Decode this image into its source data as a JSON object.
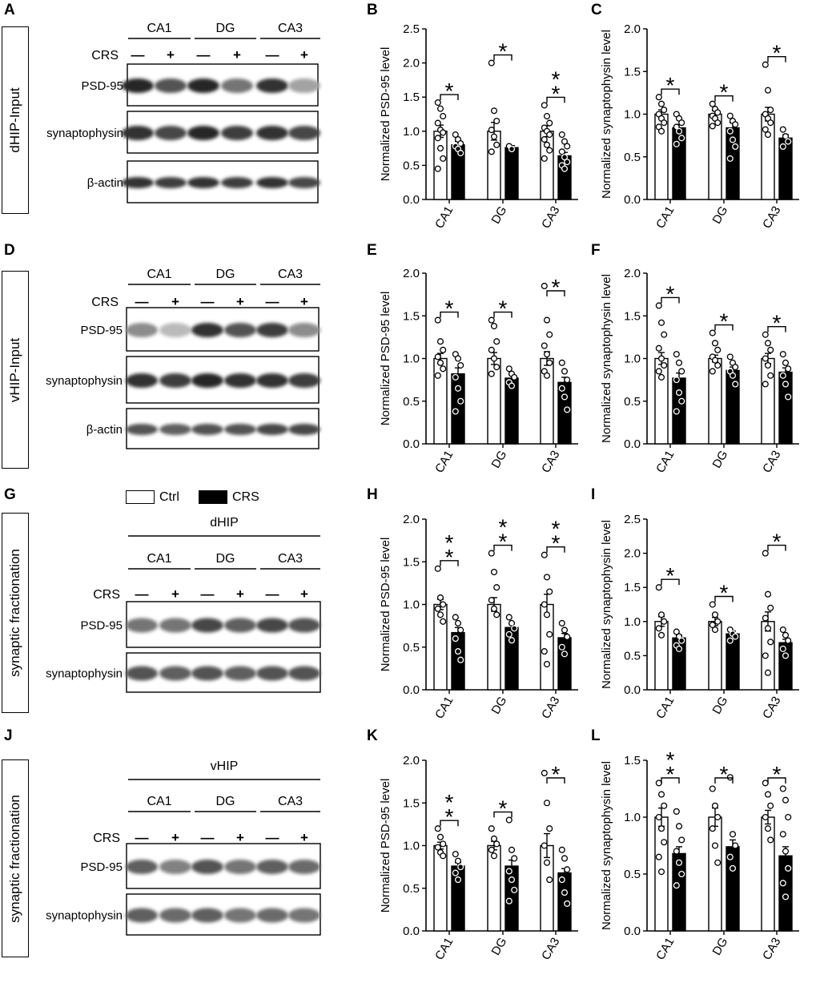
{
  "panels": {
    "A": "A",
    "B": "B",
    "C": "C",
    "D": "D",
    "E": "E",
    "F": "F",
    "G": "G",
    "H": "H",
    "I": "I",
    "J": "J",
    "K": "K",
    "L": "L"
  },
  "side_labels": {
    "row1": "dHIP-Input",
    "row2": "vHIP-Input",
    "row3": "synaptic fractionation",
    "row4": "synaptic fractionation"
  },
  "legend": {
    "ctrl": "Ctrl",
    "crs": "CRS"
  },
  "blots": [
    {
      "panel": "A",
      "region_header": "",
      "groups": [
        "CA1",
        "DG",
        "CA3"
      ],
      "treatment_label": "CRS",
      "signs": [
        "—",
        "+",
        "—",
        "+",
        "—",
        "+"
      ],
      "bands": [
        "PSD-95",
        "synaptophysin",
        "β-actin"
      ]
    },
    {
      "panel": "D",
      "region_header": "",
      "groups": [
        "CA1",
        "DG",
        "CA3"
      ],
      "treatment_label": "CRS",
      "signs": [
        "—",
        "+",
        "—",
        "+",
        "—",
        "+"
      ],
      "bands": [
        "PSD-95",
        "synaptophysin",
        "β-actin"
      ]
    },
    {
      "panel": "G",
      "region_header": "dHIP",
      "groups": [
        "CA1",
        "DG",
        "CA3"
      ],
      "treatment_label": "CRS",
      "signs": [
        "—",
        "+",
        "—",
        "+",
        "—",
        "+"
      ],
      "bands": [
        "PSD-95",
        "synaptophysin"
      ]
    },
    {
      "panel": "J",
      "region_header": "vHIP",
      "groups": [
        "CA1",
        "DG",
        "CA3"
      ],
      "treatment_label": "CRS",
      "signs": [
        "—",
        "+",
        "—",
        "+",
        "—",
        "+"
      ],
      "bands": [
        "PSD-95",
        "synaptophysin"
      ]
    }
  ],
  "chart_data": [
    {
      "panel": "B",
      "type": "bar",
      "ylabel": "Normalized PSD-95 level",
      "ylim": [
        0,
        2.5
      ],
      "yticks": [
        "0.0",
        "0.5",
        "1.0",
        "1.5",
        "2.0",
        "2.5"
      ],
      "categories": [
        "CA1",
        "DG",
        "CA3"
      ],
      "series": [
        {
          "name": "Ctrl",
          "values": [
            1.0,
            1.0,
            1.0
          ],
          "sem": [
            0.09,
            0.13,
            0.08
          ],
          "points": [
            [
              1.42,
              1.33,
              1.22,
              1.12,
              1.02,
              0.98,
              0.9,
              0.75,
              0.6,
              0.45
            ],
            [
              2.0,
              1.3,
              1.15,
              1.02,
              0.92,
              0.8,
              0.7
            ],
            [
              1.38,
              1.22,
              1.12,
              1.05,
              1.0,
              0.95,
              0.88,
              0.8,
              0.72,
              0.6
            ]
          ]
        },
        {
          "name": "CRS",
          "values": [
            0.8,
            0.76,
            0.64
          ],
          "sem": [
            0.05,
            0.03,
            0.05
          ],
          "points": [
            [
              0.95,
              0.88,
              0.82,
              0.78,
              0.74,
              0.68
            ],
            [
              0.78,
              0.74
            ],
            [
              0.95,
              0.85,
              0.78,
              0.7,
              0.62,
              0.55,
              0.5,
              0.45
            ]
          ]
        }
      ],
      "significance": [
        "*",
        "*",
        "**"
      ]
    },
    {
      "panel": "C",
      "type": "bar",
      "ylabel": "Normalized synaptophysin level",
      "ylim": [
        0,
        2.0
      ],
      "yticks": [
        "0.0",
        "0.5",
        "1.0",
        "1.5",
        "2.0"
      ],
      "categories": [
        "CA1",
        "DG",
        "CA3"
      ],
      "series": [
        {
          "name": "Ctrl",
          "values": [
            1.0,
            1.0,
            1.0
          ],
          "sem": [
            0.05,
            0.04,
            0.08
          ],
          "points": [
            [
              1.2,
              1.12,
              1.05,
              1.0,
              0.95,
              0.9,
              0.85,
              0.8
            ],
            [
              1.12,
              1.06,
              1.02,
              0.98,
              0.95,
              0.9,
              0.86
            ],
            [
              1.58,
              1.28,
              1.05,
              1.0,
              0.95,
              0.9,
              0.82,
              0.76
            ]
          ]
        },
        {
          "name": "CRS",
          "values": [
            0.84,
            0.84,
            0.72
          ],
          "sem": [
            0.04,
            0.06,
            0.04
          ],
          "points": [
            [
              1.0,
              0.95,
              0.9,
              0.85,
              0.8,
              0.72,
              0.65
            ],
            [
              0.98,
              0.92,
              0.88,
              0.8,
              0.7,
              0.62,
              0.48
            ],
            [
              0.82,
              0.74,
              0.68,
              0.62
            ]
          ]
        }
      ],
      "significance": [
        "*",
        "*",
        "*"
      ]
    },
    {
      "panel": "E",
      "type": "bar",
      "ylabel": "Normalized PSD-95 level",
      "ylim": [
        0,
        2.0
      ],
      "yticks": [
        "0.0",
        "0.5",
        "1.0",
        "1.5",
        "2.0"
      ],
      "categories": [
        "CA1",
        "DG",
        "CA3"
      ],
      "series": [
        {
          "name": "Ctrl",
          "values": [
            1.0,
            1.0,
            1.0
          ],
          "sem": [
            0.06,
            0.07,
            0.08
          ],
          "points": [
            [
              1.45,
              1.2,
              1.1,
              1.02,
              0.95,
              0.88,
              0.8
            ],
            [
              1.45,
              1.38,
              1.2,
              1.1,
              1.0,
              0.9,
              0.82
            ],
            [
              1.85,
              1.45,
              1.28,
              1.15,
              1.05,
              0.95,
              0.85,
              0.8
            ]
          ]
        },
        {
          "name": "CRS",
          "values": [
            0.82,
            0.77,
            0.72
          ],
          "sem": [
            0.07,
            0.04,
            0.06
          ],
          "points": [
            [
              1.05,
              1.0,
              0.92,
              0.78,
              0.65,
              0.5,
              0.38
            ],
            [
              0.88,
              0.82,
              0.78,
              0.72,
              0.68
            ],
            [
              0.95,
              0.85,
              0.75,
              0.65,
              0.55,
              0.4
            ]
          ]
        }
      ],
      "significance": [
        "*",
        "*",
        "*"
      ]
    },
    {
      "panel": "F",
      "type": "bar",
      "ylabel": "Normalized synaptophysin level",
      "ylim": [
        0,
        2.0
      ],
      "yticks": [
        "0.0",
        "0.5",
        "1.0",
        "1.5",
        "2.0"
      ],
      "categories": [
        "CA1",
        "DG",
        "CA3"
      ],
      "series": [
        {
          "name": "Ctrl",
          "values": [
            1.0,
            1.0,
            1.0
          ],
          "sem": [
            0.07,
            0.04,
            0.06
          ],
          "points": [
            [
              1.62,
              1.42,
              1.28,
              1.12,
              1.0,
              0.92,
              0.85,
              0.78
            ],
            [
              1.3,
              1.18,
              1.1,
              1.02,
              0.98,
              0.92,
              0.85
            ],
            [
              1.28,
              1.18,
              1.1,
              1.0,
              0.92,
              0.8,
              0.7
            ]
          ]
        },
        {
          "name": "CRS",
          "values": [
            0.77,
            0.86,
            0.84
          ],
          "sem": [
            0.06,
            0.04,
            0.05
          ],
          "points": [
            [
              1.05,
              0.95,
              0.85,
              0.75,
              0.6,
              0.5,
              0.38
            ],
            [
              1.02,
              0.95,
              0.9,
              0.85,
              0.8,
              0.7
            ],
            [
              1.05,
              0.95,
              0.88,
              0.8,
              0.7,
              0.55
            ]
          ]
        }
      ],
      "significance": [
        "*",
        "*",
        "*"
      ]
    },
    {
      "panel": "H",
      "type": "bar",
      "ylabel": "Normalized PSD-95 level",
      "ylim": [
        0,
        2.0
      ],
      "yticks": [
        "0.0",
        "0.5",
        "1.0",
        "1.5",
        "2.0"
      ],
      "categories": [
        "CA1",
        "DG",
        "CA3"
      ],
      "series": [
        {
          "name": "Ctrl",
          "values": [
            1.0,
            1.0,
            1.0
          ],
          "sem": [
            0.06,
            0.08,
            0.12
          ],
          "points": [
            [
              1.42,
              1.08,
              1.0,
              0.95,
              0.88,
              0.8
            ],
            [
              1.6,
              1.38,
              1.2,
              1.05,
              0.95,
              0.88
            ],
            [
              1.58,
              1.32,
              1.15,
              1.0,
              0.88,
              0.65,
              0.45,
              0.3
            ]
          ]
        },
        {
          "name": "CRS",
          "values": [
            0.67,
            0.73,
            0.61
          ],
          "sem": [
            0.06,
            0.05,
            0.05
          ],
          "points": [
            [
              0.85,
              0.78,
              0.7,
              0.6,
              0.45,
              0.35
            ],
            [
              0.85,
              0.78,
              0.72,
              0.65,
              0.58
            ],
            [
              0.78,
              0.7,
              0.62,
              0.5,
              0.42
            ]
          ]
        }
      ],
      "significance": [
        "**",
        "**",
        "**"
      ]
    },
    {
      "panel": "I",
      "type": "bar",
      "ylabel": "Normalized synaptophysin level",
      "ylim": [
        0,
        2.5
      ],
      "yticks": [
        "0.0",
        "0.5",
        "1.0",
        "1.5",
        "2.0",
        "2.5"
      ],
      "categories": [
        "CA1",
        "DG",
        "CA3"
      ],
      "series": [
        {
          "name": "Ctrl",
          "values": [
            1.0,
            1.0,
            1.0
          ],
          "sem": [
            0.07,
            0.06,
            0.14
          ],
          "points": [
            [
              1.5,
              1.1,
              1.0,
              0.9,
              0.8
            ],
            [
              1.25,
              1.1,
              1.0,
              0.95,
              0.88
            ],
            [
              2.0,
              1.4,
              1.2,
              1.05,
              0.9,
              0.7,
              0.5,
              0.25
            ]
          ]
        },
        {
          "name": "CRS",
          "values": [
            0.76,
            0.82,
            0.69
          ],
          "sem": [
            0.04,
            0.04,
            0.05
          ],
          "points": [
            [
              0.85,
              0.78,
              0.72,
              0.65,
              0.6
            ],
            [
              0.88,
              0.82,
              0.78,
              0.72
            ],
            [
              0.88,
              0.8,
              0.72,
              0.6,
              0.5
            ]
          ]
        }
      ],
      "significance": [
        "*",
        "*",
        "*"
      ]
    },
    {
      "panel": "K",
      "type": "bar",
      "ylabel": "Normalized PSD-95 level",
      "ylim": [
        0,
        2.0
      ],
      "yticks": [
        "0.0",
        "0.5",
        "1.0",
        "1.5",
        "2.0"
      ],
      "categories": [
        "CA1",
        "DG",
        "CA3"
      ],
      "series": [
        {
          "name": "Ctrl",
          "values": [
            1.0,
            1.0,
            1.0
          ],
          "sem": [
            0.04,
            0.05,
            0.14
          ],
          "points": [
            [
              1.2,
              1.1,
              1.02,
              0.98,
              0.92,
              0.88
            ],
            [
              1.2,
              1.08,
              1.02,
              0.95,
              0.88
            ],
            [
              1.85,
              1.5,
              1.2,
              1.0,
              0.8,
              0.6
            ]
          ]
        },
        {
          "name": "CRS",
          "values": [
            0.76,
            0.76,
            0.68
          ],
          "sem": [
            0.04,
            0.07,
            0.05
          ],
          "points": [
            [
              0.9,
              0.82,
              0.75,
              0.68,
              0.6
            ],
            [
              1.3,
              0.95,
              0.85,
              0.7,
              0.6,
              0.48,
              0.35
            ],
            [
              0.95,
              0.85,
              0.72,
              0.6,
              0.45,
              0.32
            ]
          ]
        }
      ],
      "significance": [
        "**",
        "*",
        "*"
      ]
    },
    {
      "panel": "L",
      "type": "bar",
      "ylabel": "Normalized synaptophysin level",
      "ylim": [
        0,
        1.5
      ],
      "yticks": [
        "0.0",
        "0.5",
        "1.0",
        "1.5"
      ],
      "categories": [
        "CA1",
        "DG",
        "CA3"
      ],
      "series": [
        {
          "name": "Ctrl",
          "values": [
            1.0,
            1.0,
            1.0
          ],
          "sem": [
            0.08,
            0.08,
            0.06
          ],
          "points": [
            [
              1.3,
              1.2,
              1.1,
              1.0,
              0.9,
              0.78,
              0.65,
              0.52
            ],
            [
              1.25,
              1.1,
              1.0,
              0.9,
              0.75,
              0.6
            ],
            [
              1.3,
              1.2,
              1.1,
              1.0,
              0.9,
              0.8
            ]
          ]
        },
        {
          "name": "CRS",
          "values": [
            0.68,
            0.74,
            0.66
          ],
          "sem": [
            0.06,
            0.06,
            0.08
          ],
          "points": [
            [
              1.05,
              0.92,
              0.8,
              0.7,
              0.6,
              0.5,
              0.4
            ],
            [
              1.35,
              0.85,
              0.75,
              0.65,
              0.55
            ],
            [
              1.25,
              1.15,
              1.0,
              0.85,
              0.7,
              0.55,
              0.42,
              0.3
            ]
          ]
        }
      ],
      "significance": [
        "**",
        "*",
        "*"
      ]
    }
  ]
}
